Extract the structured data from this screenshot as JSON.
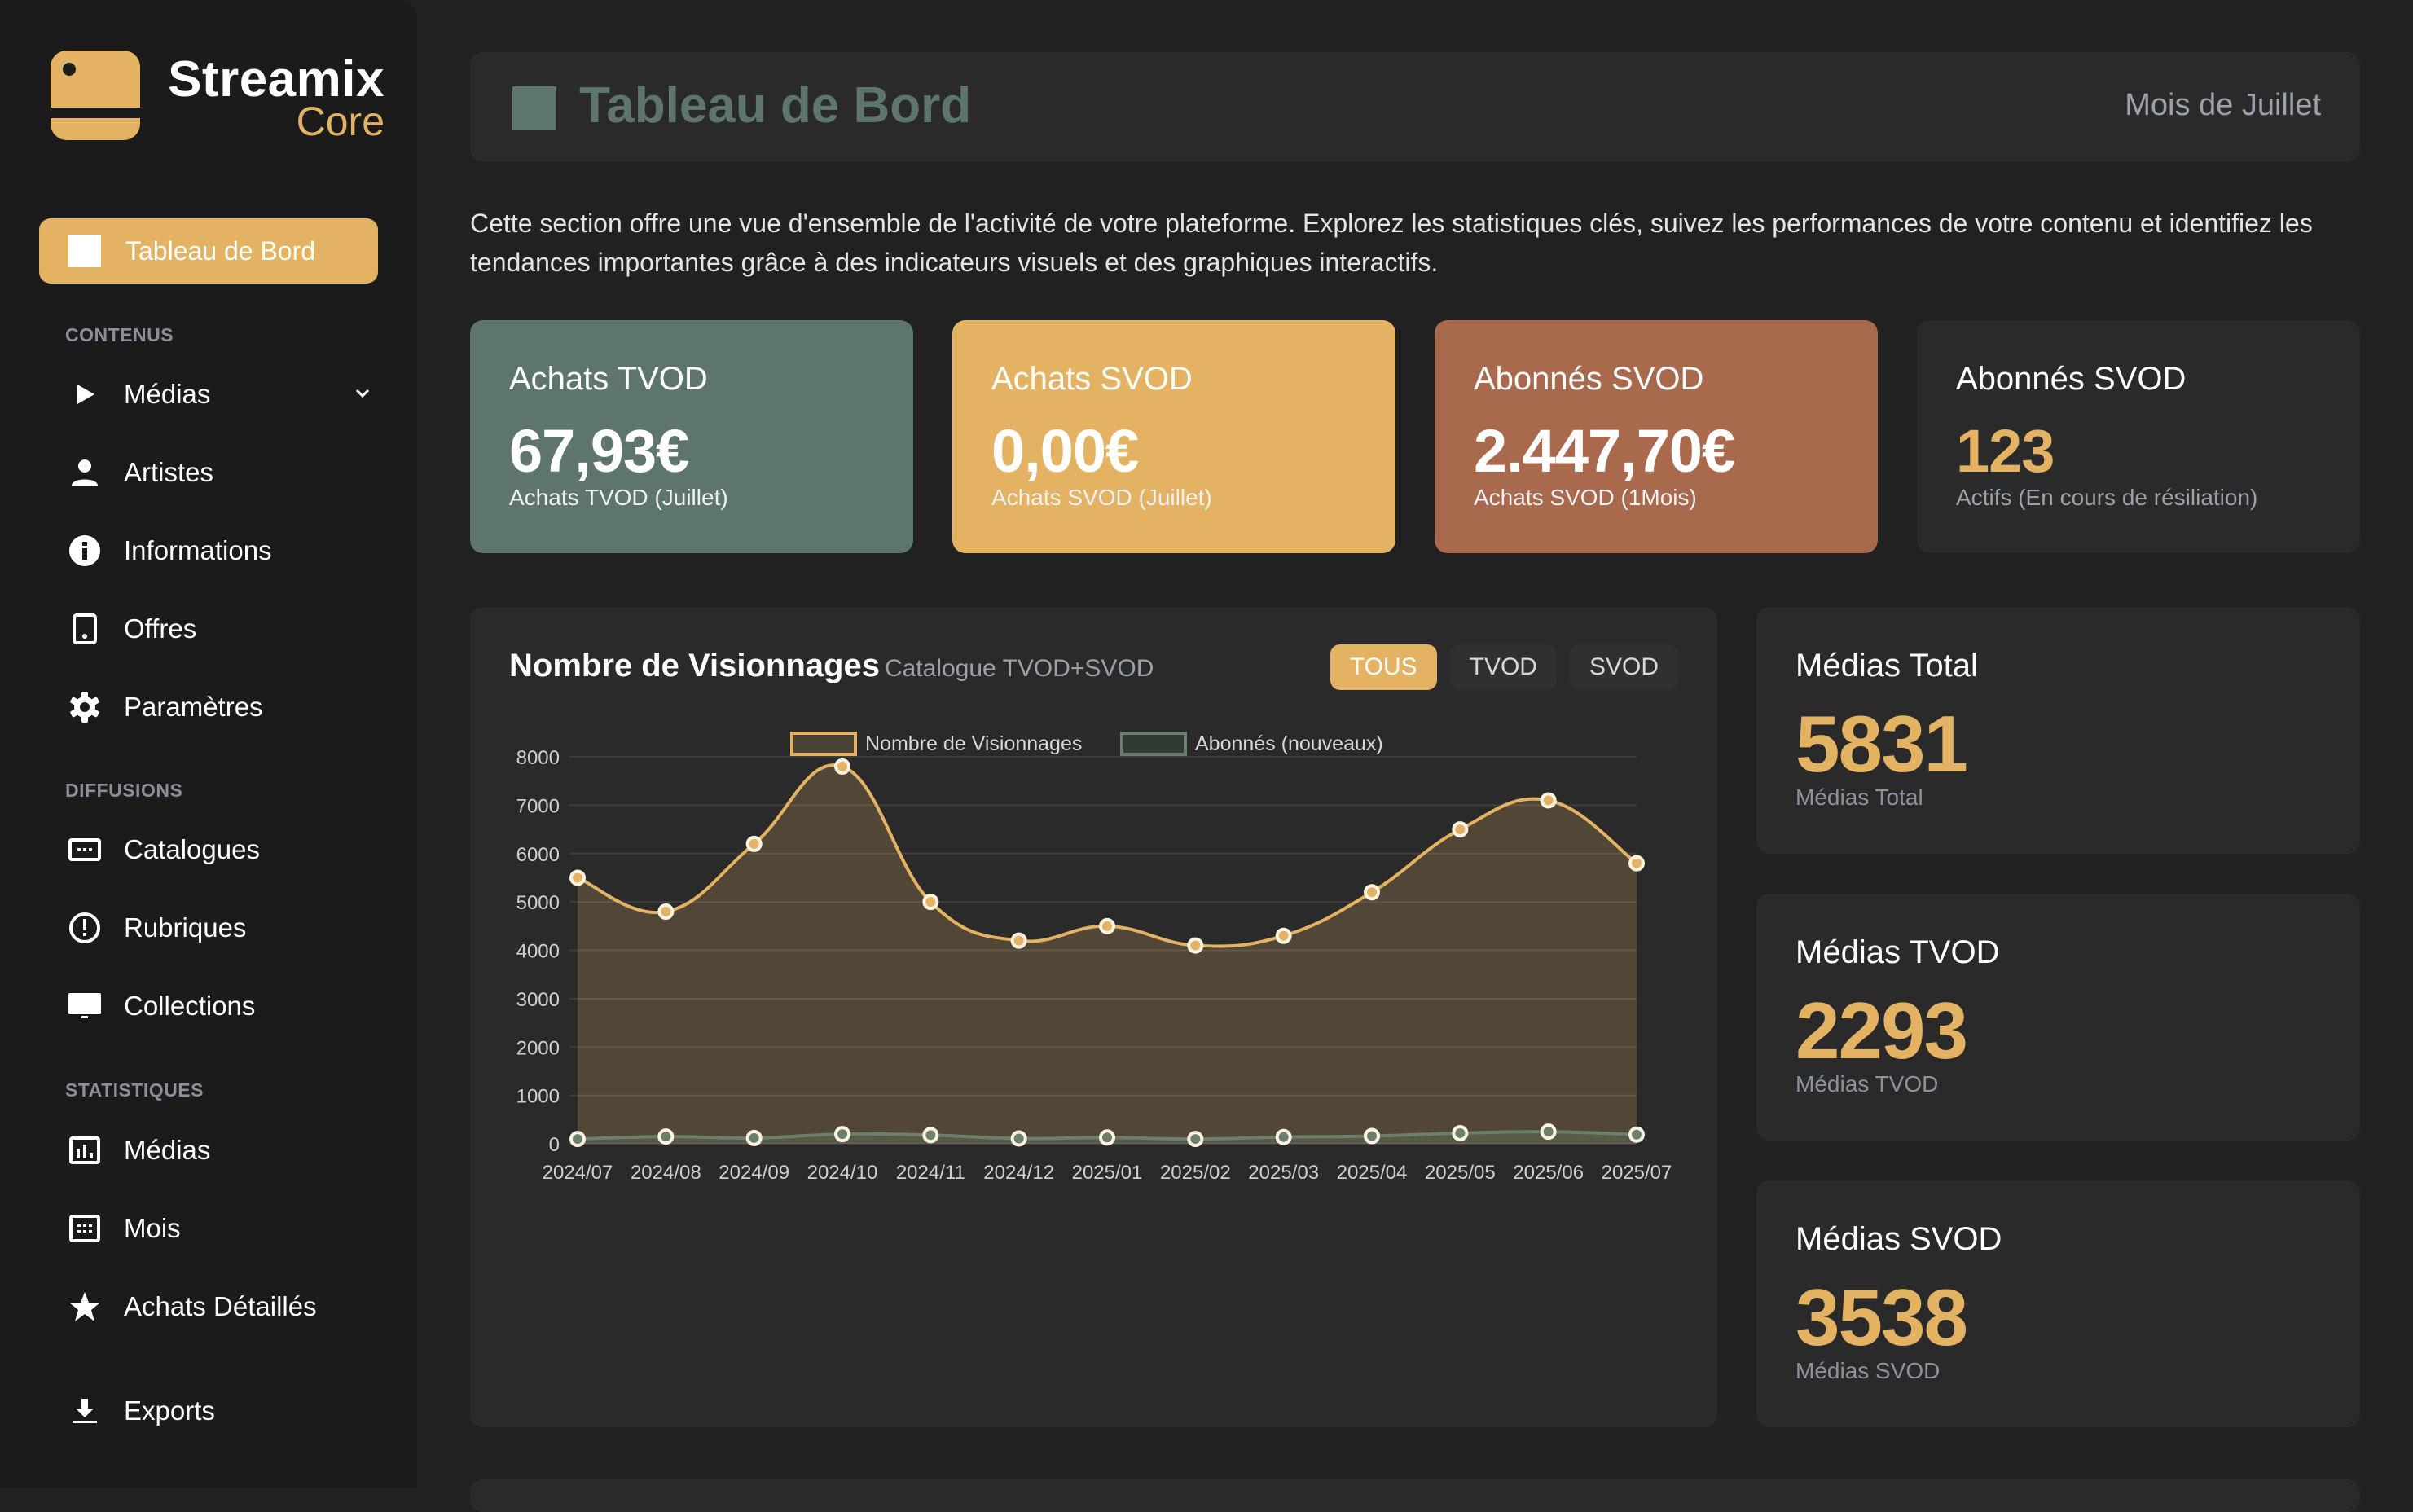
{
  "brand": {
    "name": "Streamix",
    "sub": "Core",
    "accent": "#e3b262"
  },
  "sidebar": {
    "active": {
      "label": "Tableau de Bord"
    },
    "sections": [
      {
        "title": "CONTENUS",
        "items": [
          {
            "label": "Médias",
            "icon": "play-icon",
            "expandable": true
          },
          {
            "label": "Artistes",
            "icon": "person-icon"
          },
          {
            "label": "Informations",
            "icon": "info-icon"
          },
          {
            "label": "Offres",
            "icon": "tablet-icon"
          },
          {
            "label": "Paramètres",
            "icon": "gear-icon"
          }
        ]
      },
      {
        "title": "DIFFUSIONS",
        "items": [
          {
            "label": "Catalogues",
            "icon": "catalog-icon"
          },
          {
            "label": "Rubriques",
            "icon": "alert-circle-icon"
          },
          {
            "label": "Collections",
            "icon": "monitor-icon"
          }
        ]
      },
      {
        "title": "STATISTIQUES",
        "items": [
          {
            "label": "Médias",
            "icon": "bar-chart-icon"
          },
          {
            "label": "Mois",
            "icon": "calendar-icon"
          },
          {
            "label": "Achats Détaillés",
            "icon": "star-icon"
          }
        ]
      }
    ],
    "footer": {
      "label": "Exports",
      "icon": "download-icon"
    }
  },
  "header": {
    "title": "Tableau de Bord",
    "period": "Mois de Juillet"
  },
  "description": "Cette section offre une vue d'ensemble de l'activité de votre plateforme. Explorez les statistiques clés, suivez les performances de votre contenu et identifiez les tendances importantes grâce à des indicateurs visuels et des graphiques interactifs.",
  "kpis": [
    {
      "title": "Achats TVOD",
      "value": "67,93€",
      "sub": "Achats TVOD (Juillet)",
      "color": "#5e756d"
    },
    {
      "title": "Achats SVOD",
      "value": "0,00€",
      "sub": "Achats SVOD (Juillet)",
      "color": "#e3b262"
    },
    {
      "title": "Abonnés SVOD",
      "value": "2.447,70€",
      "sub": "Achats SVOD (1Mois)",
      "color": "#a8694d"
    },
    {
      "title": "Abonnés SVOD",
      "value": "123",
      "sub": "Actifs (En cours de résiliation)",
      "color": "#2a2a2a"
    }
  ],
  "chart_card": {
    "title": "Nombre de Visionnages",
    "subtitle": "Catalogue TVOD+SVOD",
    "filters": [
      {
        "label": "TOUS",
        "active": true
      },
      {
        "label": "TVOD",
        "active": false
      },
      {
        "label": "SVOD",
        "active": false
      }
    ]
  },
  "chart_data": {
    "type": "area",
    "title": "Nombre de Visionnages",
    "subtitle": "Catalogue TVOD+SVOD",
    "categories": [
      "2024/07",
      "2024/08",
      "2024/09",
      "2024/10",
      "2024/11",
      "2024/12",
      "2025/01",
      "2025/02",
      "2025/03",
      "2025/04",
      "2025/05",
      "2025/06",
      "2025/07"
    ],
    "series": [
      {
        "name": "Nombre de Visionnages",
        "color": "#e3b262",
        "fill": "#4b4436",
        "values": [
          5500,
          4800,
          6200,
          7800,
          5000,
          4200,
          4500,
          4100,
          4300,
          5200,
          6500,
          7100,
          5800
        ]
      },
      {
        "name": "Abonnés (nouveaux)",
        "color": "#6b7f6d",
        "fill": "#323a36",
        "values": [
          100,
          150,
          120,
          200,
          180,
          110,
          130,
          100,
          140,
          160,
          220,
          250,
          190
        ]
      }
    ],
    "yticks": [
      0,
      1000,
      2000,
      3000,
      4000,
      5000,
      6000,
      7000,
      8000
    ],
    "ylim": [
      0,
      8000
    ],
    "xlabel": "",
    "ylabel": "",
    "grid": true,
    "legend_position": "top"
  },
  "side_cards": [
    {
      "title": "Médias Total",
      "value": "5831",
      "sub": "Médias Total"
    },
    {
      "title": "Médias TVOD",
      "value": "2293",
      "sub": "Médias TVOD"
    },
    {
      "title": "Médias SVOD",
      "value": "3538",
      "sub": "Médias SVOD"
    }
  ]
}
